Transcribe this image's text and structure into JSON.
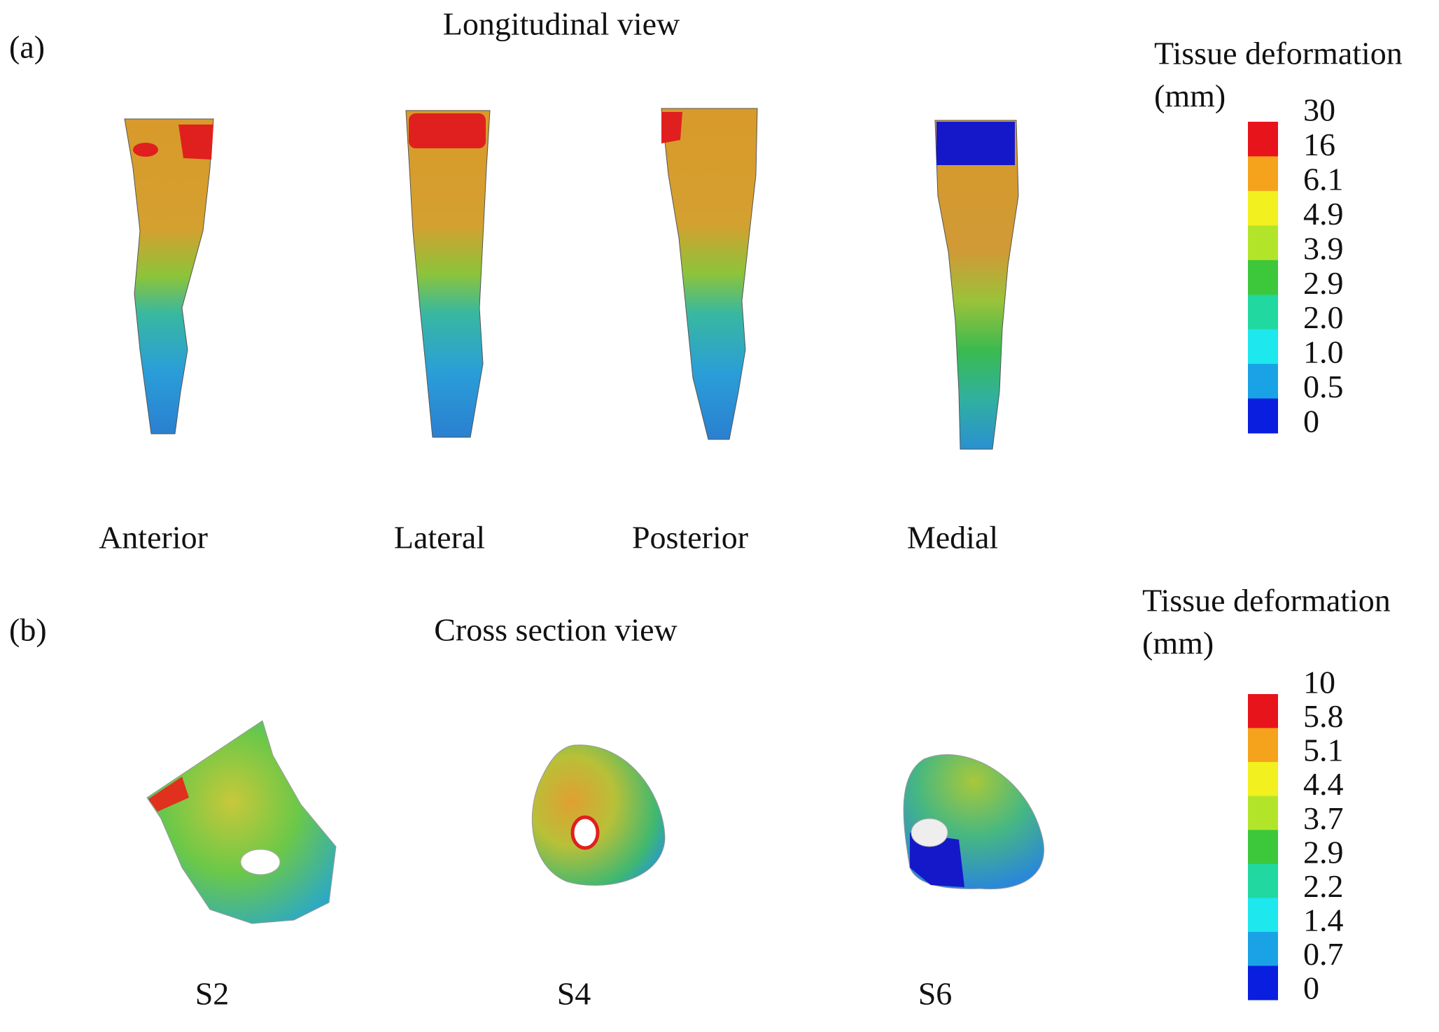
{
  "panels": [
    {
      "label": "(a)",
      "title": "Longitudinal view",
      "views": [
        "Anterior",
        "Lateral",
        "Posterior",
        "Medial"
      ],
      "colorbar": {
        "title": "Tissue deformation",
        "unit": "(mm)",
        "ticks": [
          "30",
          "16",
          "6.1",
          "4.9",
          "3.9",
          "2.9",
          "2.0",
          "1.0",
          "0.5",
          "0"
        ],
        "colors": [
          "#e8141b",
          "#f5a21c",
          "#f2f01e",
          "#b2e52a",
          "#3cc83a",
          "#20d8a0",
          "#1de8ee",
          "#1aa2e6",
          "#0a1ee0"
        ]
      }
    },
    {
      "label": "(b)",
      "title": "Cross section view",
      "views": [
        "S2",
        "S4",
        "S6"
      ],
      "colorbar": {
        "title": "Tissue deformation",
        "unit": "(mm)",
        "ticks": [
          "10",
          "5.8",
          "5.1",
          "4.4",
          "3.7",
          "2.9",
          "2.2",
          "1.4",
          "0.7",
          "0"
        ],
        "colors": [
          "#e8141b",
          "#f5a21c",
          "#f2f01e",
          "#b2e52a",
          "#3cc83a",
          "#20d8a0",
          "#1de8ee",
          "#1aa2e6",
          "#0a1ee0"
        ]
      }
    }
  ]
}
